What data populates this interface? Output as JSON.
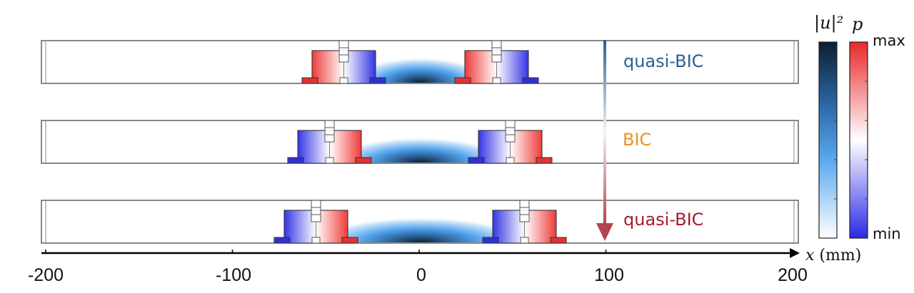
{
  "rows": [
    {
      "label": "quasi-BIC",
      "color": "#2b5f8e",
      "mirrored": false
    },
    {
      "label": "BIC",
      "color": "#e8951e",
      "mirrored": true
    },
    {
      "label": "quasi-BIC",
      "color": "#a61c2a",
      "mirrored": true
    }
  ],
  "axis": {
    "ticks": [
      "-200",
      "-100",
      "0",
      "100",
      "200"
    ],
    "tick_values": [
      -200,
      -100,
      0,
      100,
      200
    ],
    "label_var": "x",
    "label_unit": "(mm)"
  },
  "colorbars": {
    "u_title": "|u|²",
    "p_title": "p",
    "max_label": "max",
    "min_label": "min",
    "u_color_top": "#0b1e33",
    "u_color_mid": "#3c95e0",
    "u_color_bottom": "#ffffff",
    "p_color_top": "#e8282a",
    "p_color_mid": "#ffffff",
    "p_color_bottom": "#2a2ae6"
  },
  "arrow": {
    "color_top": "#2b5f8e",
    "color_bottom": "#b2454f"
  }
}
